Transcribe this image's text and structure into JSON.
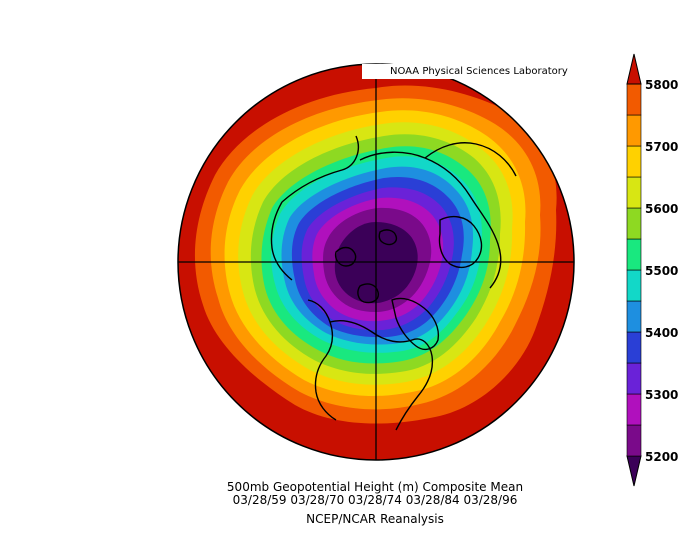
{
  "credit": "NOAA Physical Sciences Laboratory",
  "title": "500mb Geopotential Height (m) Composite Mean",
  "dates": "03/28/59 03/28/70 03/28/74 03/28/84 03/28/96",
  "source": "NCEP/NCAR Reanalysis",
  "colorbar": {
    "labels": [
      "5800",
      "5700",
      "5600",
      "5500",
      "5400",
      "5300",
      "5200"
    ],
    "levels": [
      5200,
      5250,
      5300,
      5350,
      5400,
      5450,
      5500,
      5550,
      5600,
      5650,
      5700,
      5750,
      5800
    ],
    "colors": [
      "#3b0058",
      "#7a0a8a",
      "#b010bd",
      "#6a22d8",
      "#2a3fd6",
      "#1e8fe0",
      "#12d8c8",
      "#19e87f",
      "#8ed922",
      "#d8e613",
      "#ffd100",
      "#ff9900",
      "#f25a00",
      "#c80f00"
    ]
  },
  "colors": {
    "outside": "#c80f00",
    "coastline": "#000000"
  }
}
